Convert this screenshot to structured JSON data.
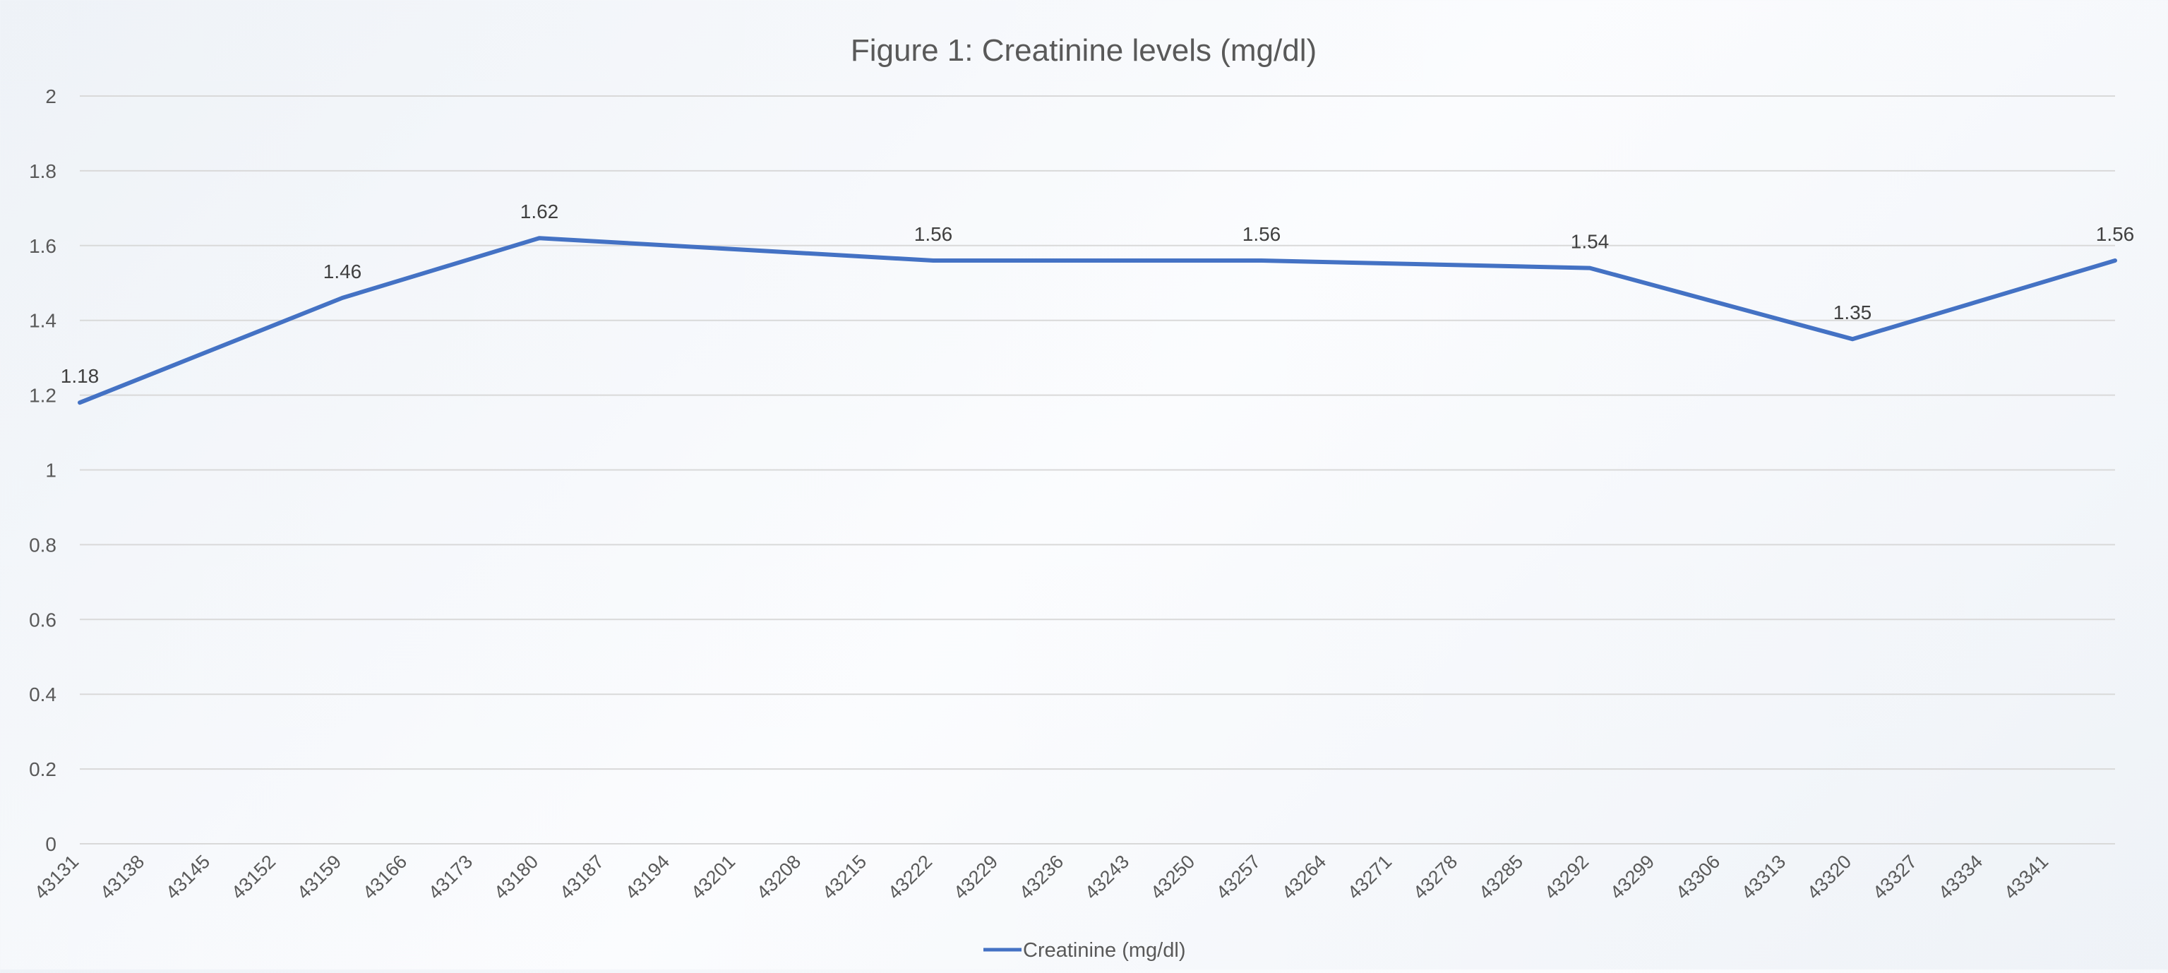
{
  "chart_data": {
    "type": "line",
    "title": "Figure 1: Creatinine levels (mg/dl)",
    "xlabel": "",
    "ylabel": "",
    "x_axis": {
      "min": 43131,
      "max": 43348,
      "tick_step": 7,
      "tick_labels": [
        "43131",
        "43138",
        "43145",
        "43152",
        "43159",
        "43166",
        "43173",
        "43180",
        "43187",
        "43194",
        "43201",
        "43208",
        "43215",
        "43222",
        "43229",
        "43236",
        "43243",
        "43250",
        "43257",
        "43264",
        "43271",
        "43278",
        "43285",
        "43292",
        "43299",
        "43306",
        "43313",
        "43320",
        "43327",
        "43334",
        "43341"
      ]
    },
    "ylim": [
      0,
      2
    ],
    "yticks": [
      "0",
      "0.2",
      "0.4",
      "0.6",
      "0.8",
      "1",
      "1.2",
      "1.4",
      "1.6",
      "1.8",
      "2"
    ],
    "grid": true,
    "legend": "bottom",
    "series": [
      {
        "name": "Creatinine (mg/dl)",
        "color": "#4472c4",
        "x": [
          43131,
          43159,
          43180,
          43222,
          43257,
          43292,
          43320,
          43348
        ],
        "values": [
          1.18,
          1.46,
          1.62,
          1.56,
          1.56,
          1.54,
          1.35,
          1.56
        ],
        "data_labels": [
          "1.18",
          "1.46",
          "1.62",
          "1.56",
          "1.56",
          "1.54",
          "1.35",
          "1.56"
        ]
      }
    ]
  }
}
